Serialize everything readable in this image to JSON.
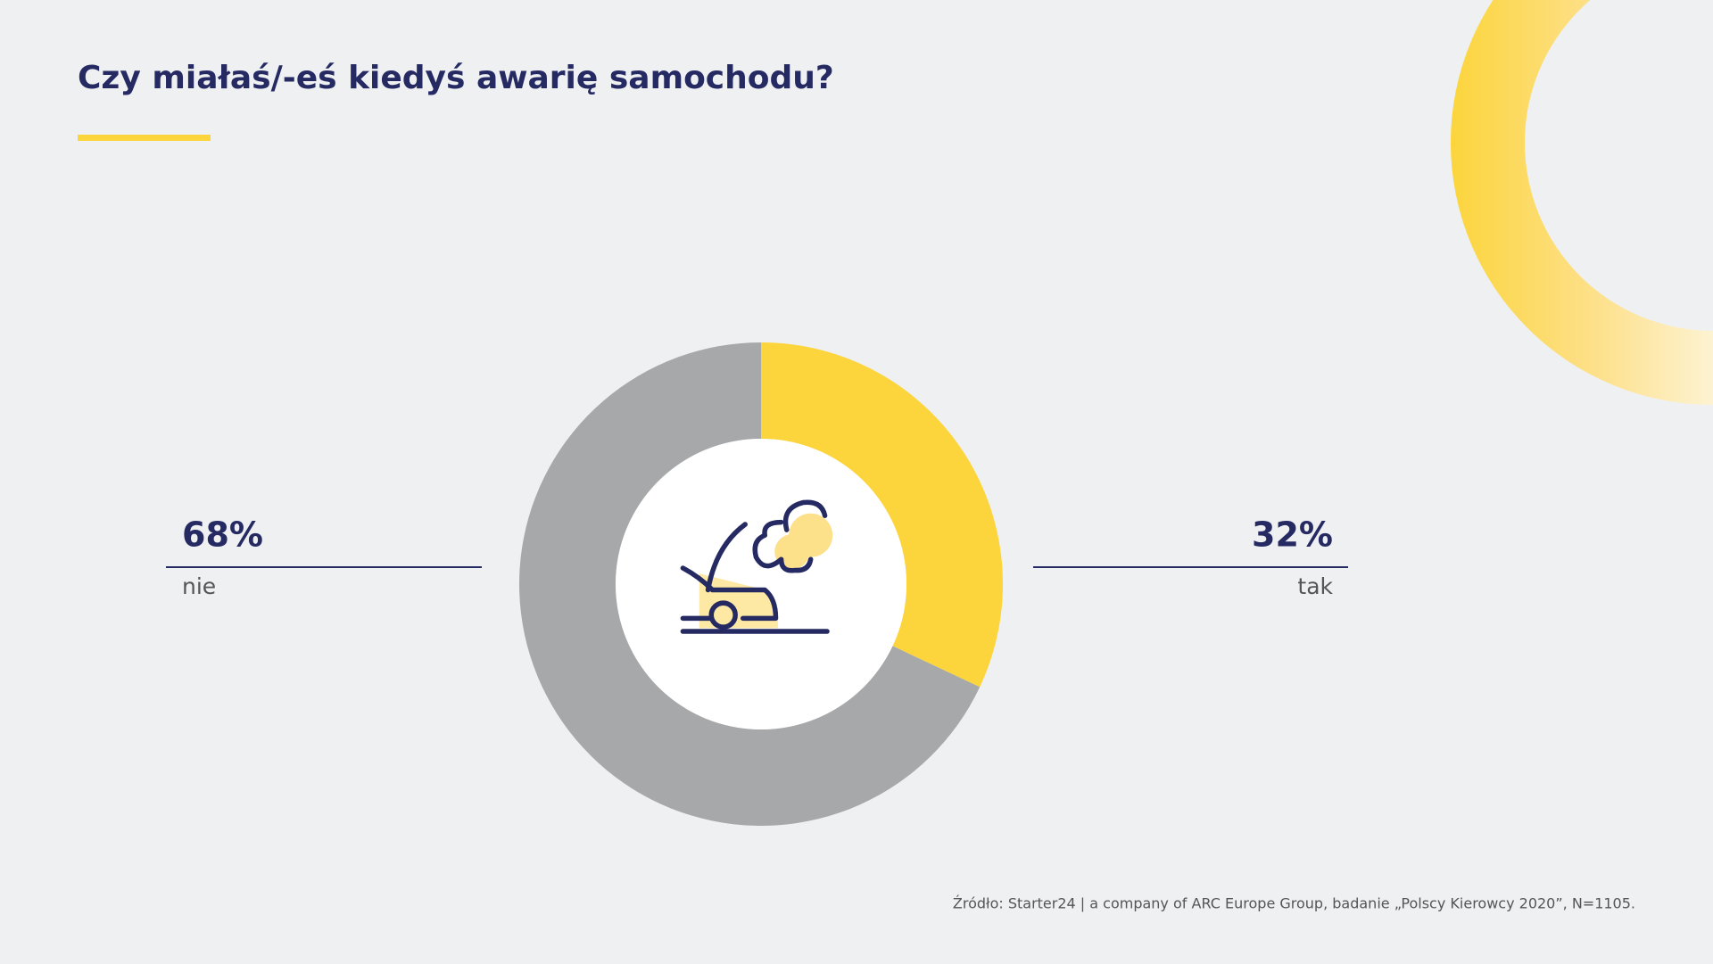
{
  "chart_data": {
    "type": "pie",
    "title": "Czy miałaś/-eś kiedyś awarię samochodu?",
    "categories": [
      "tak",
      "nie"
    ],
    "values": [
      32,
      68
    ],
    "value_labels": [
      "32%",
      "68%"
    ],
    "colors": [
      "#fcd53c",
      "#a7a8aa"
    ],
    "donut": true,
    "source": "Źródło: Starter24 | a company of ARC Europe Group, badanie „Polscy Kierowcy 2020”, N=1105."
  }
}
